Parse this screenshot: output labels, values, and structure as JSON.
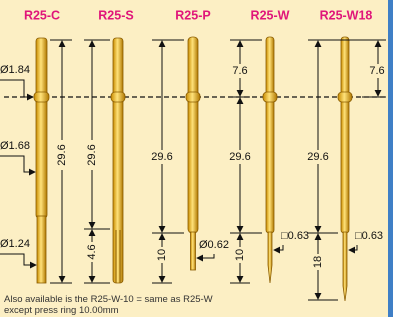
{
  "probes": [
    "R25-C",
    "R25-S",
    "R25-P",
    "R25-W",
    "R25-W18"
  ],
  "diameters": [
    "Ø1.84",
    "Ø1.68",
    "Ø1.24"
  ],
  "dimensions": [
    "29.6",
    "29.6",
    "4.6",
    "29.6",
    "10",
    "Ø0.62",
    "7.6",
    "29.6",
    "10",
    "□0.63",
    "7.6",
    "29.6",
    "18",
    "□0.63"
  ],
  "note": [
    "Also available is the R25-W-10 = same as R25-W",
    "except press ring 10.00mm"
  ]
}
